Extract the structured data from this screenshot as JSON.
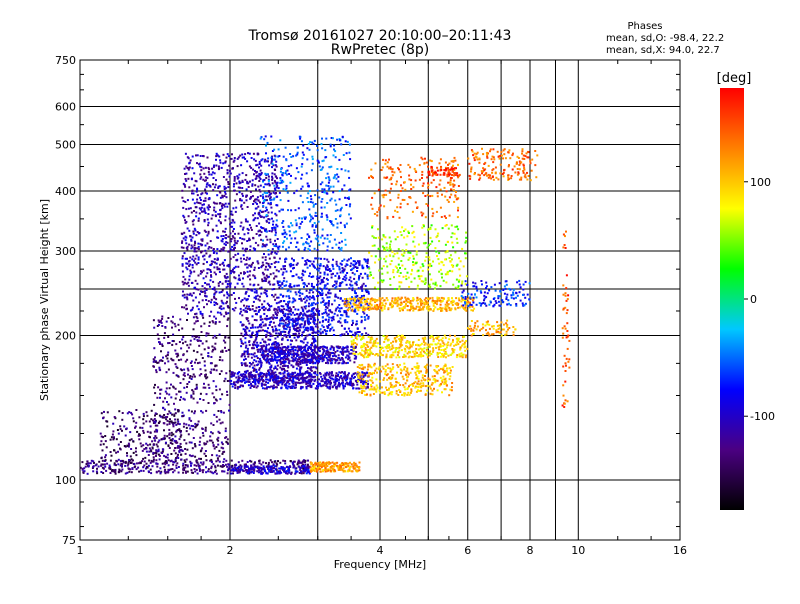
{
  "header": {
    "title_line1": "Tromsø 20161027 20:10:00–20:11:43",
    "title_line2": "RwPretec (8p)",
    "phases_heading": "Phases",
    "phases_o": "mean, sd,O: -98.4, 22.2",
    "phases_x": "mean, sd,X:  94.0, 22.7"
  },
  "chart_data": {
    "type": "scatter",
    "title": "Tromsø 20161027 20:10:00–20:11:43",
    "subtitle": "RwPretec (8p)",
    "xlabel": "Frequency [MHz]",
    "ylabel": "Stationary phase Virtual Height [km]",
    "x_scale": "log",
    "y_scale": "log",
    "xlim": [
      1,
      16
    ],
    "ylim": [
      75,
      750
    ],
    "x_ticks": [
      1,
      2,
      4,
      6,
      8,
      10,
      16
    ],
    "x_minor_gridlines": [
      3,
      5,
      7,
      9
    ],
    "y_ticks": [
      75,
      100,
      200,
      300,
      400,
      500,
      600,
      750
    ],
    "y_minor_gridlines": [
      250
    ],
    "grid": true,
    "colorbar": {
      "label": "[deg]",
      "range": [
        -180,
        180
      ],
      "ticks": [
        100,
        0,
        -100
      ],
      "colors": [
        "#000000",
        "#4b0082",
        "#0000ff",
        "#00c8ff",
        "#00ff00",
        "#ffff00",
        "#ff8000",
        "#ff0000"
      ]
    },
    "series": [
      {
        "x_range": [
          1.0,
          2.9
        ],
        "y_range": [
          103,
          110
        ],
        "phase": -130,
        "density": 420
      },
      {
        "x_range": [
          2.0,
          2.9
        ],
        "y_range": [
          103,
          107
        ],
        "phase": -95,
        "density": 160
      },
      {
        "x_range": [
          2.9,
          3.65
        ],
        "y_range": [
          104,
          109
        ],
        "phase": 115,
        "density": 180
      },
      {
        "x_range": [
          1.1,
          1.6
        ],
        "y_range": [
          108,
          140
        ],
        "phase": -135,
        "density": 240
      },
      {
        "x_range": [
          1.4,
          2.0
        ],
        "y_range": [
          110,
          220
        ],
        "phase": -130,
        "density": 520
      },
      {
        "x_range": [
          1.6,
          2.5
        ],
        "y_range": [
          220,
          480
        ],
        "phase": -110,
        "density": 1100
      },
      {
        "x_range": [
          2.1,
          3.0
        ],
        "y_range": [
          160,
          230
        ],
        "phase": -105,
        "density": 700
      },
      {
        "x_range": [
          2.0,
          3.8
        ],
        "y_range": [
          155,
          168
        ],
        "phase": -100,
        "density": 520
      },
      {
        "x_range": [
          2.3,
          3.6
        ],
        "y_range": [
          175,
          190
        ],
        "phase": -100,
        "density": 420
      },
      {
        "x_range": [
          2.5,
          3.8
        ],
        "y_range": [
          200,
          290
        ],
        "phase": -85,
        "density": 700
      },
      {
        "x_range": [
          2.3,
          3.5
        ],
        "y_range": [
          300,
          520
        ],
        "phase": -60,
        "density": 420
      },
      {
        "x_range": [
          3.4,
          6.2
        ],
        "y_range": [
          225,
          240
        ],
        "phase": 110,
        "density": 380
      },
      {
        "x_range": [
          3.5,
          6.0
        ],
        "y_range": [
          180,
          200
        ],
        "phase": 95,
        "density": 380
      },
      {
        "x_range": [
          3.6,
          5.6
        ],
        "y_range": [
          150,
          175
        ],
        "phase": 105,
        "density": 330
      },
      {
        "x_range": [
          3.8,
          6.0
        ],
        "y_range": [
          250,
          340
        ],
        "phase": 60,
        "density": 280
      },
      {
        "x_range": [
          3.8,
          5.8
        ],
        "y_range": [
          350,
          470
        ],
        "phase": 140,
        "density": 200
      },
      {
        "x_range": [
          5.0,
          5.8
        ],
        "y_range": [
          430,
          450
        ],
        "phase": 165,
        "density": 70
      },
      {
        "x_range": [
          6.0,
          8.3
        ],
        "y_range": [
          420,
          490
        ],
        "phase": 140,
        "density": 160
      },
      {
        "x_range": [
          5.8,
          8.0
        ],
        "y_range": [
          230,
          260
        ],
        "phase": -70,
        "density": 130
      },
      {
        "x_range": [
          6.0,
          7.5
        ],
        "y_range": [
          200,
          215
        ],
        "phase": 110,
        "density": 70
      },
      {
        "x_range": [
          9.3,
          9.6
        ],
        "y_range": [
          140,
          330
        ],
        "phase": 150,
        "density": 50
      }
    ]
  }
}
